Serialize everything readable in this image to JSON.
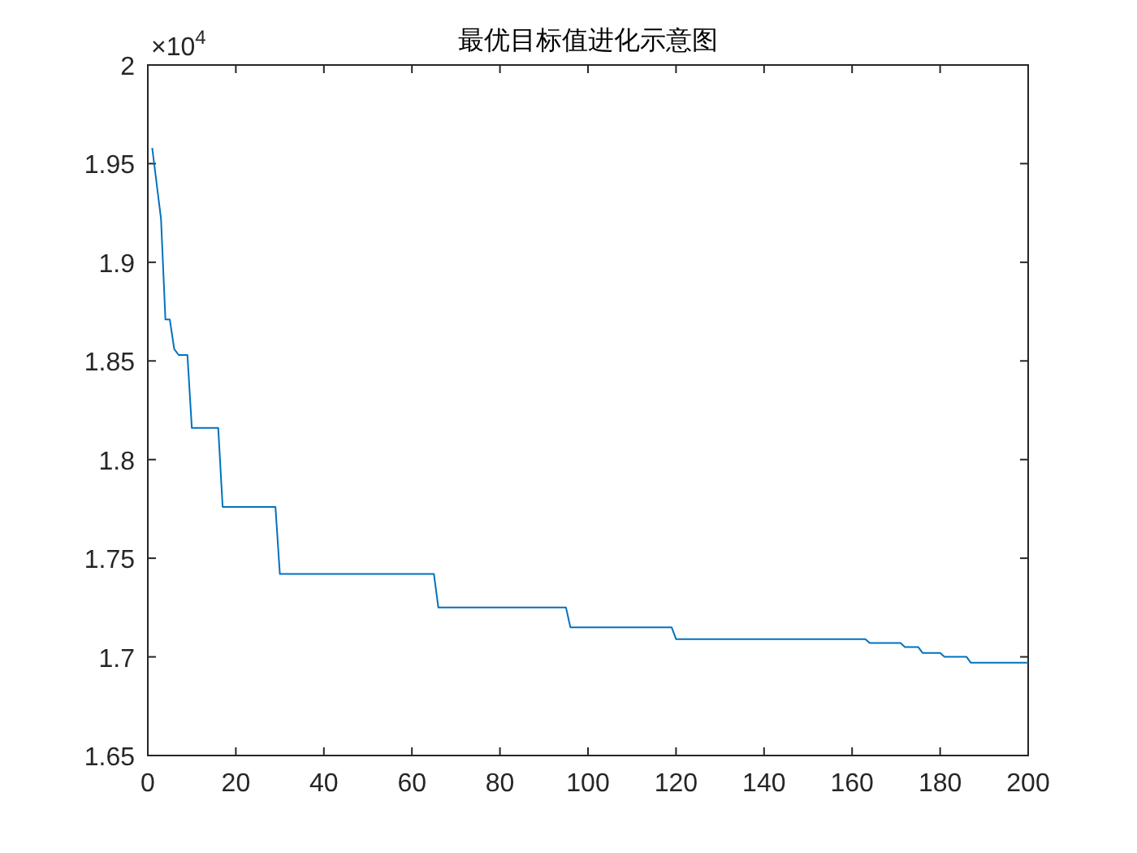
{
  "chart_data": {
    "type": "line",
    "title": "最优目标值进化示意图",
    "annotations": [
      "×10$^{4}$"
    ],
    "x": [
      1,
      3,
      4,
      5,
      6,
      7,
      9,
      10,
      16,
      17,
      29,
      30,
      65,
      66,
      95,
      96,
      119,
      120,
      163,
      164,
      171,
      172,
      175,
      176,
      180,
      181,
      186,
      187,
      200
    ],
    "series": [
      {
        "color": "#0072bd",
        "values": [
          1.958,
          1.922,
          1.871,
          1.871,
          1.856,
          1.853,
          1.853,
          1.816,
          1.816,
          1.776,
          1.776,
          1.742,
          1.742,
          1.725,
          1.725,
          1.715,
          1.715,
          1.709,
          1.709,
          1.707,
          1.707,
          1.705,
          1.705,
          1.702,
          1.702,
          1.7,
          1.7,
          1.697,
          1.697
        ]
      }
    ],
    "xlim": [
      0,
      200
    ],
    "xticks": [
      0,
      20,
      40,
      60,
      80,
      100,
      120,
      140,
      160,
      180,
      200
    ],
    "ylim": [
      1.65,
      2
    ],
    "yticks": [
      1.65,
      1.7,
      1.75,
      1.8,
      1.85,
      1.9,
      1.95,
      2
    ]
  }
}
